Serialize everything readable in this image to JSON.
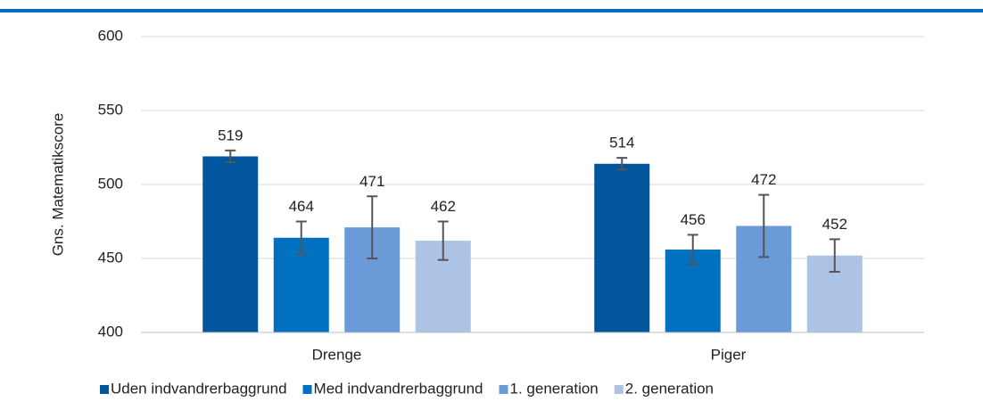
{
  "chart_data": {
    "type": "bar",
    "ylabel": "Gns. Matematikscore",
    "categories": [
      "Drenge",
      "Piger"
    ],
    "series": [
      {
        "name": "Uden indvandrerbaggrund",
        "color": "#01569e",
        "values": [
          519,
          514
        ],
        "errors": [
          4,
          4
        ]
      },
      {
        "name": "Med indvandrerbaggrund",
        "color": "#0070c0",
        "values": [
          464,
          456
        ],
        "errors": [
          11,
          10
        ]
      },
      {
        "name": "1. generation",
        "color": "#6a9ad8",
        "values": [
          471,
          472
        ],
        "errors": [
          21,
          21
        ]
      },
      {
        "name": "2. generation",
        "color": "#adc3e5",
        "values": [
          462,
          452
        ],
        "errors": [
          13,
          11
        ]
      }
    ],
    "ylim": [
      400,
      600
    ],
    "yticks": [
      400,
      450,
      500,
      550,
      600
    ],
    "grid": true,
    "legend": "bottom"
  }
}
